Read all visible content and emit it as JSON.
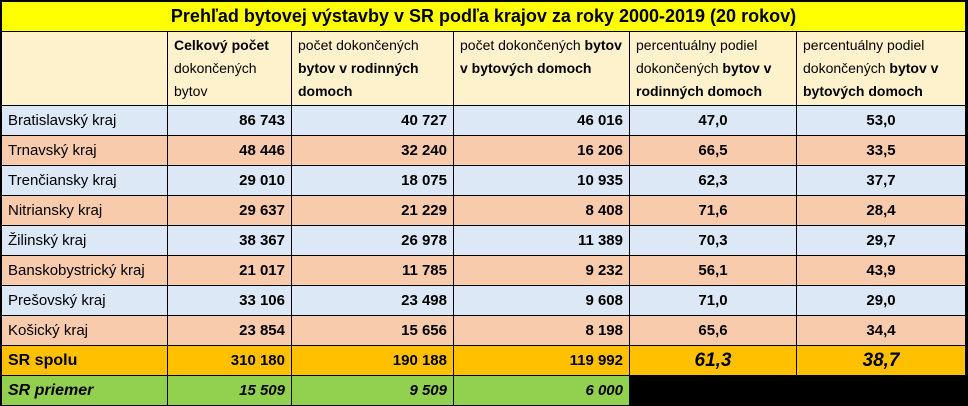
{
  "title": "Prehľad bytovej výstavby v SR podľa krajov za roky 2000-2019 (20 rokov)",
  "headers": {
    "col1": {
      "line1_bold": "Celkový počet",
      "rest": "dokončených bytov"
    },
    "col2": {
      "plain": "počet dokončených",
      "bold": "bytov v rodinných domoch"
    },
    "col3": {
      "plain": "počet dokončených",
      "bold": "bytov v bytových domoch"
    },
    "col4": {
      "plain": "percentuálny podiel dokončených",
      "bold": "bytov v rodinných domoch"
    },
    "col5": {
      "plain": "percentuálny podiel dokončených",
      "bold": "bytov v bytových domoch"
    }
  },
  "rows": [
    {
      "region": "Bratislavský kraj",
      "total": "86 743",
      "family": "40 727",
      "apartment": "46 016",
      "pct_family": "47,0",
      "pct_apartment": "53,0"
    },
    {
      "region": "Trnavský kraj",
      "total": "48 446",
      "family": "32 240",
      "apartment": "16 206",
      "pct_family": "66,5",
      "pct_apartment": "33,5"
    },
    {
      "region": "Trenčiansky kraj",
      "total": "29 010",
      "family": "18 075",
      "apartment": "10 935",
      "pct_family": "62,3",
      "pct_apartment": "37,7"
    },
    {
      "region": "Nitriansky kraj",
      "total": "29 637",
      "family": "21 229",
      "apartment": "8 408",
      "pct_family": "71,6",
      "pct_apartment": "28,4"
    },
    {
      "region": "Žilinský kraj",
      "total": "38 367",
      "family": "26 978",
      "apartment": "11 389",
      "pct_family": "70,3",
      "pct_apartment": "29,7"
    },
    {
      "region": "Banskobystrický kraj",
      "total": "21 017",
      "family": "11 785",
      "apartment": "9 232",
      "pct_family": "56,1",
      "pct_apartment": "43,9"
    },
    {
      "region": "Prešovský kraj",
      "total": "33 106",
      "family": "23 498",
      "apartment": "9 608",
      "pct_family": "71,0",
      "pct_apartment": "29,0"
    },
    {
      "region": "Košický kraj",
      "total": "23 854",
      "family": "15 656",
      "apartment": "8 198",
      "pct_family": "65,6",
      "pct_apartment": "34,4"
    }
  ],
  "total": {
    "region": "SR spolu",
    "total": "310 180",
    "family": "190 188",
    "apartment": "119 992",
    "pct_family": "61,3",
    "pct_apartment": "38,7"
  },
  "average": {
    "region": "SR priemer",
    "total": "15 509",
    "family": "9 509",
    "apartment": "6 000"
  },
  "colors": {
    "title": "#ffff00",
    "header": "#fef2cc",
    "row_blue": "#dde8f6",
    "row_orange": "#f8cbad",
    "total": "#ffc000",
    "average": "#92d050"
  }
}
